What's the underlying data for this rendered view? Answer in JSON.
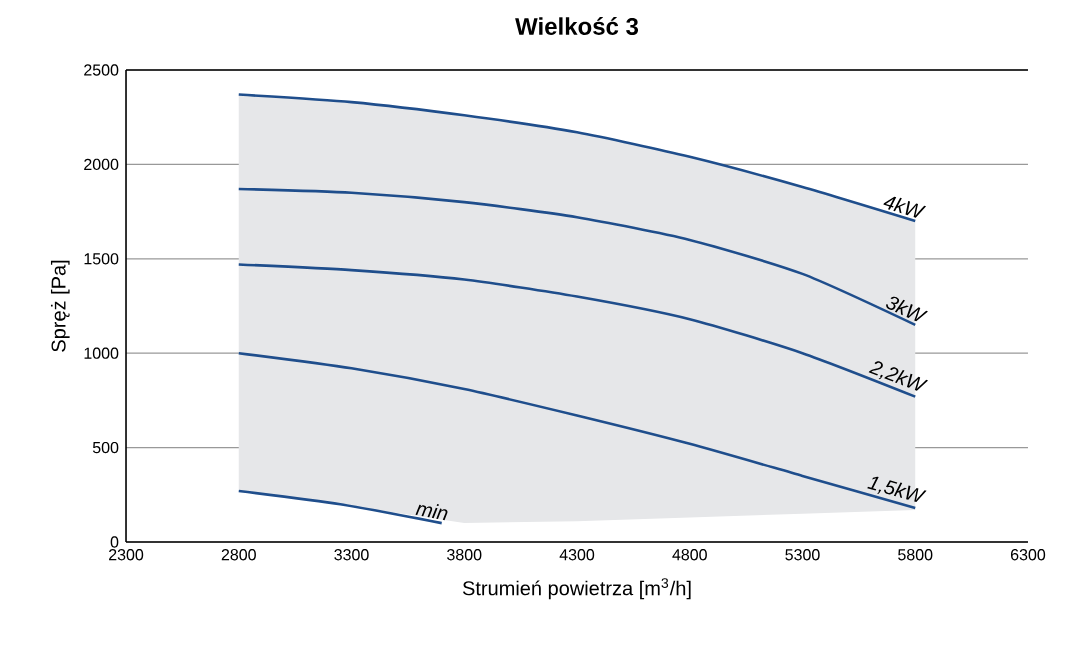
{
  "chart_data": {
    "type": "line",
    "title": "Wielkość 3",
    "xlabel": "Strumień powietrza [m$^{3}$/h]",
    "ylabel": "Spręż [Pa]",
    "xlim": [
      2300,
      6300
    ],
    "ylim": [
      0,
      2500
    ],
    "xticks": [
      2300,
      2800,
      3300,
      3800,
      4300,
      4800,
      5300,
      5800,
      6300
    ],
    "yticks": [
      0,
      500,
      1000,
      1500,
      2000,
      2500
    ],
    "grid": "y",
    "marker": "none",
    "line_style": "solid",
    "series": [
      {
        "name": "4kW",
        "color": "#1f4e8c",
        "x": [
          2800,
          3300,
          3800,
          4300,
          4800,
          5300,
          5800
        ],
        "values": [
          2370,
          2330,
          2260,
          2170,
          2040,
          1880,
          1700
        ],
        "lower": [
          270,
          190,
          100,
          110,
          130,
          150,
          170
        ],
        "upper": [
          2370,
          2330,
          2260,
          2170,
          2040,
          1880,
          1700
        ]
      },
      {
        "name": "3kW",
        "color": "#1f4e8c",
        "x": [
          2800,
          3300,
          3800,
          4300,
          4800,
          5300,
          5800
        ],
        "values": [
          1870,
          1850,
          1800,
          1720,
          1600,
          1420,
          1150
        ]
      },
      {
        "name": "2,2kW",
        "color": "#1f4e8c",
        "x": [
          2800,
          3300,
          3800,
          4300,
          4800,
          5300,
          5800
        ],
        "values": [
          1470,
          1440,
          1390,
          1300,
          1180,
          1000,
          770
        ]
      },
      {
        "name": "1,5kW",
        "color": "#1f4e8c",
        "x": [
          2800,
          3300,
          3800,
          4300,
          4800,
          5300,
          5800
        ],
        "values": [
          1000,
          920,
          810,
          670,
          520,
          350,
          180
        ]
      },
      {
        "name": "min",
        "color": "#1f4e8c",
        "x": [
          2800,
          3250,
          3700
        ],
        "values": [
          270,
          200,
          100
        ]
      }
    ]
  }
}
